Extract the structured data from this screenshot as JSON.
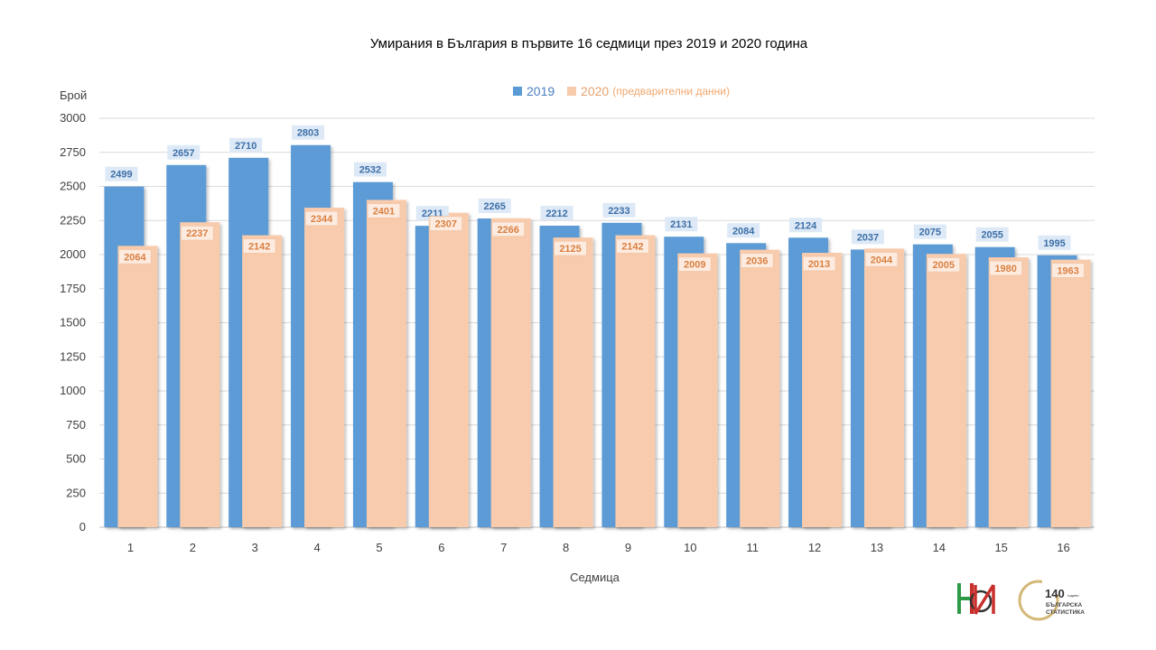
{
  "chart_data": {
    "type": "bar",
    "title": "Умирания в България в първите 16 седмици през 2019 и 2020 година",
    "ylabel": "Брой",
    "xlabel": "Седмица",
    "categories": [
      "1",
      "2",
      "3",
      "4",
      "5",
      "6",
      "7",
      "8",
      "9",
      "10",
      "11",
      "12",
      "13",
      "14",
      "15",
      "16"
    ],
    "series": [
      {
        "name": "2019",
        "color": "#5b9bd5",
        "values": [
          2499,
          2657,
          2710,
          2803,
          2532,
          2211,
          2265,
          2212,
          2233,
          2131,
          2084,
          2124,
          2037,
          2075,
          2055,
          1995
        ]
      },
      {
        "name": "2020",
        "note": "(предварителни данни)",
        "color": "#f8cbad",
        "values": [
          2064,
          2237,
          2142,
          2344,
          2401,
          2307,
          2266,
          2125,
          2142,
          2009,
          2036,
          2013,
          2044,
          2005,
          1980,
          1963
        ]
      }
    ],
    "ylim": [
      0,
      3000
    ],
    "yticks": [
      0,
      250,
      500,
      750,
      1000,
      1250,
      1500,
      1750,
      2000,
      2250,
      2500,
      2750,
      3000
    ],
    "grid": true,
    "legend_position": "top"
  },
  "logos": {
    "nsi": "НСИ",
    "anniversary_number": "140",
    "anniversary_word": "години",
    "anniversary_line1": "БЪЛГАРСКА",
    "anniversary_line2": "СТАТИСТИКА"
  }
}
